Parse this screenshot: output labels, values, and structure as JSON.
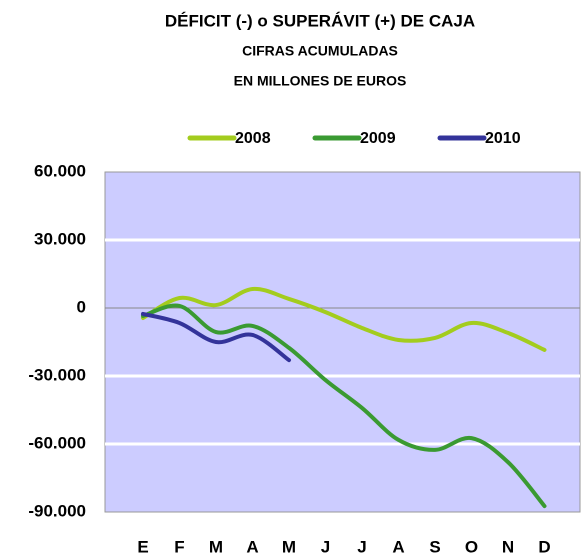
{
  "chart_data": {
    "type": "line",
    "title": "DÉFICIT (-) o SUPERÁVIT (+) DE CAJA",
    "subtitle": [
      "CIFRAS ACUMULADAS",
      "EN MILLONES DE EUROS"
    ],
    "categories": [
      "E",
      "F",
      "M",
      "A",
      "M",
      "J",
      "J",
      "A",
      "S",
      "O",
      "N",
      "D"
    ],
    "series": [
      {
        "name": "2008",
        "color": "#a3cc1e",
        "values": [
          -4400,
          4400,
          1300,
          8400,
          4000,
          -1800,
          -8800,
          -14100,
          -13200,
          -6600,
          -11000,
          -18500
        ]
      },
      {
        "name": "2009",
        "color": "#3a9a32",
        "values": [
          -3500,
          900,
          -10600,
          -7900,
          -17600,
          -31800,
          -44100,
          -58200,
          -62600,
          -57400,
          -68000,
          -87400
        ]
      },
      {
        "name": "2010",
        "color": "#33339a",
        "values": [
          -2600,
          -6600,
          -15000,
          -11900,
          -23000,
          null,
          null,
          null,
          null,
          null,
          null,
          null
        ]
      }
    ],
    "ylim": [
      -90000,
      60000
    ],
    "yticks": [
      {
        "value": 60000,
        "label": "60.000"
      },
      {
        "value": 30000,
        "label": "30.000"
      },
      0,
      {
        "value": -30000,
        "label": "-30.000"
      },
      {
        "value": -60000,
        "label": "-60.000"
      },
      {
        "value": -90000,
        "label": "-90.000"
      }
    ],
    "grid": true,
    "legend": "top"
  }
}
